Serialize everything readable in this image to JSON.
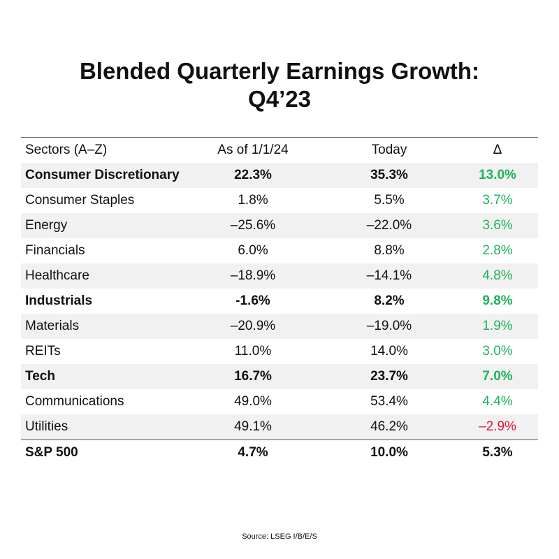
{
  "chart_data": {
    "type": "table",
    "title": "Blended Quarterly Earnings Growth:",
    "subtitle": "Q4’23",
    "columns": [
      "Sectors (A–Z)",
      "As of 1/1/24",
      "Today",
      "Δ"
    ],
    "rows": [
      {
        "sector": "Consumer Discretionary",
        "asof": "22.3%",
        "today": "35.3%",
        "delta": "13.0%",
        "bold": true,
        "neg": false
      },
      {
        "sector": "Consumer Staples",
        "asof": "1.8%",
        "today": "5.5%",
        "delta": "3.7%",
        "bold": false,
        "neg": false
      },
      {
        "sector": "Energy",
        "asof": "–25.6%",
        "today": "–22.0%",
        "delta": "3.6%",
        "bold": false,
        "neg": false
      },
      {
        "sector": "Financials",
        "asof": "6.0%",
        "today": "8.8%",
        "delta": "2.8%",
        "bold": false,
        "neg": false
      },
      {
        "sector": "Healthcare",
        "asof": "–18.9%",
        "today": "–14.1%",
        "delta": "4.8%",
        "bold": false,
        "neg": false
      },
      {
        "sector": "Industrials",
        "asof": "-1.6%",
        "today": "8.2%",
        "delta": "9.8%",
        "bold": true,
        "neg": false
      },
      {
        "sector": "Materials",
        "asof": "–20.9%",
        "today": "–19.0%",
        "delta": "1.9%",
        "bold": false,
        "neg": false
      },
      {
        "sector": "REITs",
        "asof": "11.0%",
        "today": "14.0%",
        "delta": "3.0%",
        "bold": false,
        "neg": false
      },
      {
        "sector": "Tech",
        "asof": "16.7%",
        "today": "23.7%",
        "delta": "7.0%",
        "bold": true,
        "neg": false
      },
      {
        "sector": "Communications",
        "asof": "49.0%",
        "today": "53.4%",
        "delta": "4.4%",
        "bold": false,
        "neg": false
      },
      {
        "sector": "Utilities",
        "asof": "49.1%",
        "today": "46.2%",
        "delta": "–2.9%",
        "bold": false,
        "neg": true
      }
    ],
    "total": {
      "sector": "S&P 500",
      "asof": "4.7%",
      "today": "10.0%",
      "delta": "5.3%"
    },
    "source": "Source: LSEG I/B/E/S"
  },
  "colors": {
    "positive": "#1fb25a",
    "negative": "#e0163c",
    "shade": "#f1f1f1"
  }
}
